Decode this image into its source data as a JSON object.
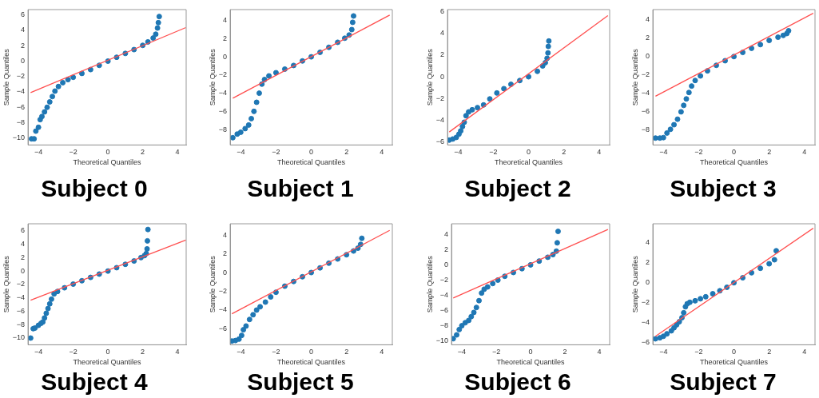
{
  "chart_data": [
    {
      "type": "scatter",
      "title": "Subject 0",
      "xlabel": "Theoretical Quantiles",
      "ylabel": "Sample Quantiles",
      "xlim": [
        -4.6,
        4.5
      ],
      "xticks": [
        -4,
        -2,
        0,
        2,
        4
      ],
      "ylim": [
        -10.9,
        6.7
      ],
      "yticks": [
        -10,
        -8,
        -6,
        -4,
        -2,
        0,
        2,
        4,
        6
      ],
      "series": [
        {
          "color": "#1f77b4",
          "marker": "circle",
          "x": [
            -4.4,
            -4.25,
            -4.15,
            -4.0,
            -3.9,
            -3.8,
            -3.65,
            -3.5,
            -3.35,
            -3.2,
            -3.05,
            -2.85,
            -2.6,
            -2.3,
            -2.0,
            -1.5,
            -1.0,
            -0.5,
            0,
            0.5,
            1.0,
            1.5,
            2.0,
            2.3,
            2.6,
            2.75,
            2.85,
            2.9,
            2.95
          ],
          "values": [
            -10.1,
            -10.1,
            -9.1,
            -8.6,
            -7.6,
            -7.2,
            -6.6,
            -6.0,
            -5.3,
            -4.6,
            -3.9,
            -3.3,
            -2.8,
            -2.4,
            -2.1,
            -1.6,
            -1.1,
            -0.55,
            0,
            0.5,
            1.0,
            1.5,
            2.05,
            2.5,
            3.0,
            3.5,
            4.3,
            5.0,
            5.8
          ]
        },
        {
          "type": "line",
          "color": "#ff5050",
          "x": [
            -4.45,
            4.48
          ],
          "values": [
            -4.1,
            4.36
          ]
        }
      ]
    },
    {
      "type": "scatter",
      "title": "Subject 1",
      "xlabel": "Theoretical Quantiles",
      "ylabel": "Sample Quantiles",
      "xlim": [
        -4.6,
        4.6
      ],
      "xticks": [
        -4,
        -2,
        0,
        2,
        4
      ],
      "ylim": [
        -9.7,
        5.2
      ],
      "yticks": [
        -8,
        -6,
        -4,
        -2,
        0,
        2,
        4
      ],
      "series": [
        {
          "color": "#1f77b4",
          "marker": "circle",
          "x": [
            -4.45,
            -4.2,
            -4.0,
            -3.75,
            -3.55,
            -3.4,
            -3.25,
            -3.1,
            -2.95,
            -2.8,
            -2.65,
            -2.4,
            -2.0,
            -1.5,
            -1.0,
            -0.5,
            0,
            0.5,
            1.0,
            1.5,
            1.9,
            2.15,
            2.3,
            2.35,
            2.4
          ],
          "values": [
            -8.9,
            -8.5,
            -8.3,
            -7.9,
            -7.5,
            -6.8,
            -6.0,
            -5.0,
            -4.0,
            -3.0,
            -2.5,
            -2.1,
            -1.75,
            -1.35,
            -0.95,
            -0.45,
            0,
            0.5,
            1.05,
            1.6,
            2.05,
            2.4,
            3.0,
            3.8,
            4.5
          ]
        },
        {
          "type": "line",
          "color": "#ff5050",
          "x": [
            -4.45,
            4.45
          ],
          "values": [
            -4.55,
            4.6
          ]
        }
      ]
    },
    {
      "type": "scatter",
      "title": "Subject 2",
      "xlabel": "Theoretical Quantiles",
      "ylabel": "Sample Quantiles",
      "xlim": [
        -4.6,
        4.6
      ],
      "xticks": [
        -4,
        -2,
        0,
        2,
        4
      ],
      "ylim": [
        -6.3,
        6.2
      ],
      "yticks": [
        -6,
        -4,
        -2,
        0,
        2,
        4,
        6
      ],
      "series": [
        {
          "color": "#1f77b4",
          "marker": "circle",
          "x": [
            -4.5,
            -4.3,
            -4.1,
            -3.95,
            -3.85,
            -3.75,
            -3.65,
            -3.55,
            -3.4,
            -3.2,
            -2.9,
            -2.55,
            -2.2,
            -1.8,
            -1.4,
            -1.0,
            -0.5,
            0,
            0.5,
            0.8,
            0.95,
            1.05,
            1.1,
            1.12,
            1.15
          ],
          "values": [
            -5.85,
            -5.75,
            -5.6,
            -5.3,
            -5.0,
            -4.6,
            -4.2,
            -3.6,
            -3.25,
            -3.05,
            -2.85,
            -2.6,
            -2.05,
            -1.5,
            -1.1,
            -0.7,
            -0.35,
            0,
            0.5,
            1.0,
            1.3,
            1.7,
            2.2,
            2.8,
            3.3
          ]
        },
        {
          "type": "line",
          "color": "#ff5050",
          "x": [
            -4.5,
            4.5
          ],
          "values": [
            -5.1,
            5.65
          ]
        }
      ]
    },
    {
      "type": "scatter",
      "title": "Subject 3",
      "xlabel": "Theoretical Quantiles",
      "ylabel": "Sample Quantiles",
      "xlim": [
        -4.6,
        4.6
      ],
      "xticks": [
        -4,
        -2,
        0,
        2,
        4
      ],
      "ylim": [
        -9.6,
        5.1
      ],
      "yticks": [
        -8,
        -6,
        -4,
        -2,
        0,
        2,
        4
      ],
      "series": [
        {
          "color": "#1f77b4",
          "marker": "circle",
          "x": [
            -4.45,
            -4.2,
            -4.0,
            -3.8,
            -3.6,
            -3.4,
            -3.2,
            -3.0,
            -2.85,
            -2.7,
            -2.55,
            -2.4,
            -2.2,
            -1.9,
            -1.5,
            -1.0,
            -0.5,
            0,
            0.5,
            1.0,
            1.5,
            2.0,
            2.5,
            2.8,
            3.0,
            3.1
          ],
          "values": [
            -8.85,
            -8.85,
            -8.8,
            -8.3,
            -7.9,
            -7.4,
            -6.8,
            -6.0,
            -5.3,
            -4.6,
            -3.9,
            -3.2,
            -2.6,
            -2.1,
            -1.55,
            -0.95,
            -0.45,
            0,
            0.45,
            0.9,
            1.3,
            1.75,
            2.1,
            2.3,
            2.5,
            2.8
          ]
        },
        {
          "type": "line",
          "color": "#ff5050",
          "x": [
            -4.45,
            4.5
          ],
          "values": [
            -4.3,
            4.7
          ]
        }
      ]
    },
    {
      "type": "scatter",
      "title": "Subject 4",
      "xlabel": "Theoretical Quantiles",
      "ylabel": "Sample Quantiles",
      "xlim": [
        -4.6,
        4.5
      ],
      "xticks": [
        -4,
        -2,
        0,
        2,
        4
      ],
      "ylim": [
        -11.0,
        7.05
      ],
      "yticks": [
        -10,
        -8,
        -6,
        -4,
        -2,
        0,
        2,
        4,
        6
      ],
      "series": [
        {
          "color": "#1f77b4",
          "marker": "circle",
          "x": [
            -4.45,
            -4.3,
            -4.2,
            -4.0,
            -3.85,
            -3.75,
            -3.65,
            -3.55,
            -3.45,
            -3.35,
            -3.25,
            -3.1,
            -2.9,
            -2.5,
            -2.0,
            -1.5,
            -1.0,
            -0.5,
            0,
            0.5,
            1.0,
            1.5,
            1.9,
            2.1,
            2.2,
            2.25,
            2.27,
            2.3
          ],
          "values": [
            -10.0,
            -8.6,
            -8.5,
            -8.1,
            -7.8,
            -7.6,
            -7.0,
            -6.3,
            -5.6,
            -4.9,
            -4.2,
            -3.4,
            -3.05,
            -2.5,
            -1.95,
            -1.45,
            -0.95,
            -0.45,
            0,
            0.5,
            1.0,
            1.5,
            2.0,
            2.3,
            2.6,
            3.3,
            4.5,
            6.2
          ]
        },
        {
          "type": "line",
          "color": "#ff5050",
          "x": [
            -4.45,
            4.48
          ],
          "values": [
            -4.35,
            4.63
          ]
        }
      ]
    },
    {
      "type": "scatter",
      "title": "Subject 5",
      "xlabel": "Theoretical Quantiles",
      "ylabel": "Sample Quantiles",
      "xlim": [
        -4.6,
        4.6
      ],
      "xticks": [
        -4,
        -2,
        0,
        2,
        4
      ],
      "ylim": [
        -7.7,
        5.2
      ],
      "yticks": [
        -6,
        -4,
        -2,
        0,
        2,
        4
      ],
      "series": [
        {
          "color": "#1f77b4",
          "marker": "circle",
          "x": [
            -4.5,
            -4.3,
            -4.1,
            -3.95,
            -3.85,
            -3.7,
            -3.5,
            -3.3,
            -3.1,
            -2.9,
            -2.6,
            -2.3,
            -2.0,
            -1.5,
            -1.0,
            -0.5,
            0,
            0.5,
            1.0,
            1.5,
            2.0,
            2.4,
            2.65,
            2.8,
            2.87
          ],
          "values": [
            -7.3,
            -7.25,
            -7.1,
            -6.7,
            -6.1,
            -5.7,
            -5.0,
            -4.5,
            -4.0,
            -3.65,
            -3.15,
            -2.6,
            -2.1,
            -1.45,
            -0.95,
            -0.45,
            0,
            0.5,
            1.0,
            1.45,
            1.9,
            2.3,
            2.6,
            3.0,
            3.65
          ]
        },
        {
          "type": "line",
          "color": "#ff5050",
          "x": [
            -4.5,
            4.45
          ],
          "values": [
            -4.4,
            4.5
          ]
        }
      ]
    },
    {
      "type": "scatter",
      "title": "Subject 6",
      "xlabel": "Theoretical Quantiles",
      "ylabel": "Sample Quantiles",
      "xlim": [
        -4.6,
        4.6
      ],
      "xticks": [
        -4,
        -2,
        0,
        2,
        4
      ],
      "ylim": [
        -10.5,
        5.4
      ],
      "yticks": [
        -10,
        -8,
        -6,
        -4,
        -2,
        0,
        2,
        4
      ],
      "series": [
        {
          "color": "#1f77b4",
          "marker": "circle",
          "x": [
            -4.5,
            -4.3,
            -4.15,
            -4.0,
            -3.8,
            -3.6,
            -3.45,
            -3.3,
            -3.15,
            -3.0,
            -2.85,
            -2.7,
            -2.5,
            -2.2,
            -1.9,
            -1.5,
            -1.0,
            -0.5,
            0,
            0.5,
            1.0,
            1.3,
            1.5,
            1.55,
            1.6
          ],
          "values": [
            -9.7,
            -9.2,
            -8.5,
            -8.0,
            -7.6,
            -7.3,
            -6.8,
            -6.25,
            -5.6,
            -4.7,
            -3.7,
            -3.2,
            -2.9,
            -2.45,
            -2.0,
            -1.5,
            -1.0,
            -0.5,
            0,
            0.5,
            1.0,
            1.35,
            1.8,
            2.9,
            4.4
          ]
        },
        {
          "type": "line",
          "color": "#ff5050",
          "x": [
            -4.5,
            4.5
          ],
          "values": [
            -4.35,
            4.65
          ]
        }
      ]
    },
    {
      "type": "scatter",
      "title": "Subject 7",
      "xlabel": "Theoretical Quantiles",
      "ylabel": "Sample Quantiles",
      "xlim": [
        -4.6,
        4.6
      ],
      "xticks": [
        -4,
        -2,
        0,
        2,
        4
      ],
      "ylim": [
        -6.2,
        5.9
      ],
      "yticks": [
        -6,
        -4,
        -2,
        0,
        2,
        4
      ],
      "series": [
        {
          "color": "#1f77b4",
          "marker": "circle",
          "x": [
            -4.45,
            -4.2,
            -4.0,
            -3.8,
            -3.55,
            -3.4,
            -3.25,
            -3.1,
            -2.95,
            -2.85,
            -2.75,
            -2.65,
            -2.5,
            -2.2,
            -1.9,
            -1.6,
            -1.2,
            -0.8,
            -0.4,
            0,
            0.5,
            1.0,
            1.5,
            2.0,
            2.3,
            2.4
          ],
          "values": [
            -5.6,
            -5.5,
            -5.35,
            -5.1,
            -4.8,
            -4.5,
            -4.2,
            -3.9,
            -3.5,
            -3.0,
            -2.4,
            -2.1,
            -1.95,
            -1.8,
            -1.6,
            -1.4,
            -1.1,
            -0.8,
            -0.45,
            0,
            0.5,
            1.0,
            1.45,
            1.9,
            2.3,
            3.2
          ]
        },
        {
          "type": "line",
          "color": "#ff5050",
          "x": [
            -4.45,
            4.5
          ],
          "values": [
            -5.35,
            5.45
          ]
        }
      ]
    }
  ]
}
